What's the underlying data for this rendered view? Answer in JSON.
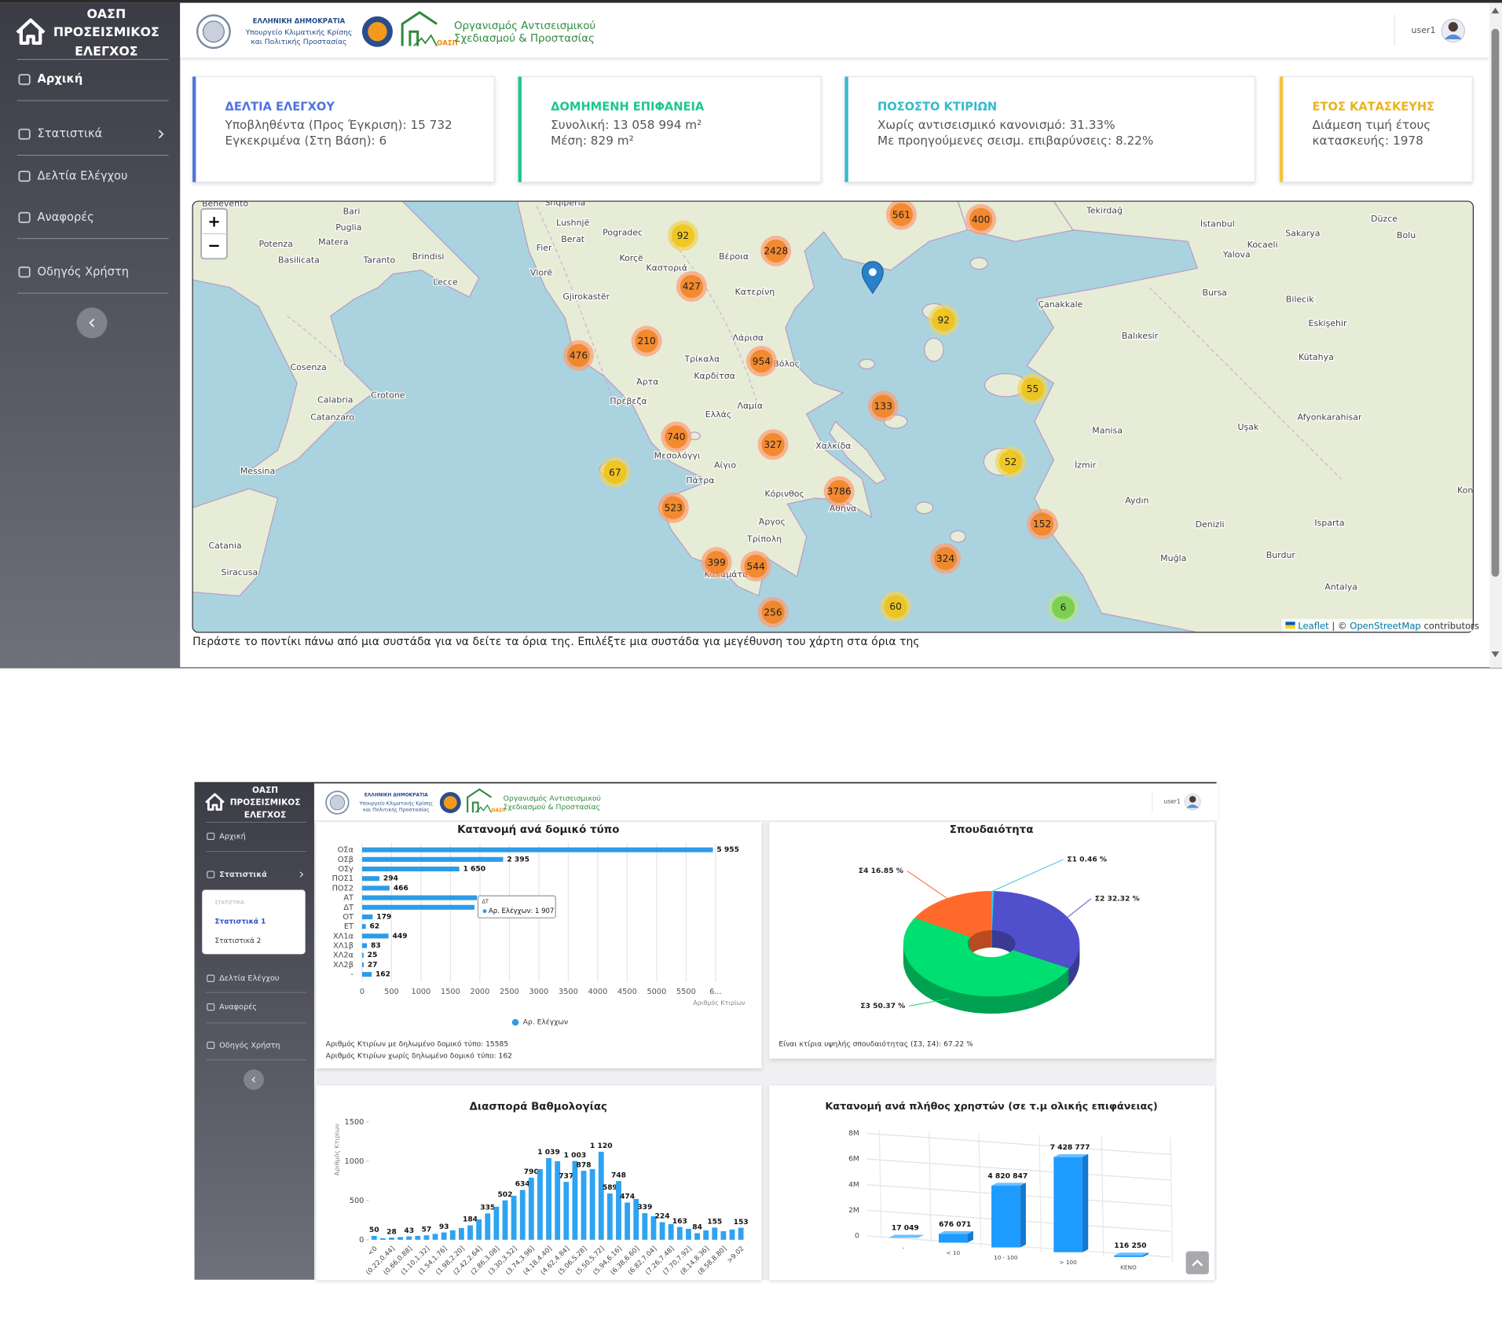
{
  "top": {
    "sidebar": {
      "title": [
        "ΟΑΣΠ",
        "ΠΡΟΣΕΙΣΜΙΚΟΣ",
        "ΕΛΕΓΧΟΣ"
      ],
      "menu": [
        "Αρχική",
        "Στατιστικά",
        "Δελτία Ελέγχου",
        "Αναφορές",
        "Οδηγός Χρήστη"
      ]
    },
    "header": {
      "ministry": [
        "ΕΛΛΗΝΙΚΗ ΔΗΜΟΚΡΑΤΙΑ",
        "Υπουργείο Κλιματικής Κρίσης",
        "και Πολιτικής Προστασίας"
      ],
      "badge": "ΟΑΣΠ",
      "org": [
        "Οργανισμός Αντισεισμικού",
        "Σχεδιασμού & Προστασίας"
      ],
      "user": "user1"
    },
    "cards": [
      {
        "title": "ΔΕΛΤΙΑ ΕΛΕΓΧΟΥ",
        "lines": [
          "Υποβληθέντα (Προς Έγκριση): 15 732",
          "Εγκεκριμένα (Στη Βάση): 6"
        ]
      },
      {
        "title": "ΔΟΜΗΜΕΝΗ ΕΠΙΦΑΝΕΙΑ",
        "lines": [
          "Συνολική: 13 058 994 m²",
          "Μέση: 829 m²"
        ]
      },
      {
        "title": "ΠΟΣΟΣΤΟ ΚΤΙΡΙΩΝ",
        "lines": [
          "Χωρίς αντισεισμικό κανονισμό: 31.33%",
          "Με προηγούμενες σεισμ. επιβαρύνσεις: 8.22%"
        ]
      },
      {
        "title": "ΕΤΟΣ ΚΑΤΑΣΚΕΥΗΣ",
        "lines": [
          "Διάμεση τιμή έτους",
          "κατασκευής: 1978"
        ]
      }
    ],
    "map": {
      "zoom_in": "+",
      "zoom_out": "−",
      "clusters": [
        561,
        400,
        92,
        2428,
        427,
        92,
        210,
        476,
        954,
        55,
        133,
        740,
        327,
        52,
        67,
        3786,
        523,
        152,
        399,
        544,
        324,
        256,
        60,
        6
      ],
      "places": [
        "Benevento",
        "Bari",
        "Puglia",
        "Matera",
        "Potenza",
        "Basilicata",
        "Taranto",
        "Brindisi",
        "Lecce",
        "Cosenza",
        "Crotone",
        "Calabria",
        "Catanzaro",
        "Messina",
        "Catania",
        "Siracusa",
        "Shqipëria",
        "Lushnjë",
        "Pogradec",
        "Berat",
        "Fier",
        "Korçë",
        "Vlorë",
        "Gjirokastër",
        "Βέροια",
        "Καστοριά",
        "Κατερίνη",
        "Λάρισα",
        "Τρίκαλα",
        "Βόλος",
        "Καρδίτσα",
        "Άρτα",
        "Πρέβεζα",
        "Λαμία",
        "Ελλάς",
        "Χαλκίδα",
        "Μεσολόγγι",
        "Αίγιο",
        "Πάτρα",
        "Κόρινθος",
        "Αθήνα",
        "Άργος",
        "Τρίπολη",
        "Καλαμάτα",
        "Tekirdağ",
        "İstanbul",
        "Düzce",
        "Sakarya",
        "Bolu",
        "Kocaeli",
        "Yalova",
        "Bursa",
        "Bilecik",
        "Çanakkale",
        "Eskişehir",
        "Balıkesir",
        "Kütahya",
        "Afyonkarahisar",
        "Uşak",
        "Manisa",
        "İzmir",
        "Aydın",
        "Isparta",
        "Denizli",
        "Burdur",
        "Muğla",
        "Antalya",
        "Konya"
      ],
      "attribution": [
        "Leaflet",
        " | © ",
        "OpenStreetMap",
        " contributors"
      ]
    },
    "caption": "Περάστε το ποντίκι πάνω από μια συστάδα για να δείτε τα όρια της. Επιλέξτε μια συστάδα για μεγέθυνση του χάρτη στα όρια της"
  },
  "bottom": {
    "sidebar": {
      "title": [
        "ΟΑΣΠ",
        "ΠΡΟΣΕΙΣΜΙΚΟΣ",
        "ΕΛΕΓΧΟΣ"
      ],
      "menu": [
        "Αρχική",
        "Στατιστικά",
        "Δελτία Ελέγχου",
        "Αναφορές",
        "Οδηγός Χρήστη"
      ],
      "submenu_header": "ΣΤΑΤΙΣΤΙΚΑ:",
      "submenu": [
        "Στατιστικά 1",
        "Στατιστικά 2"
      ]
    },
    "header": {
      "ministry": [
        "ΕΛΛΗΝΙΚΗ ΔΗΜΟΚΡΑΤΙΑ",
        "Υπουργείο Κλιματικής Κρίσης",
        "και Πολιτικής Προστασίας"
      ],
      "badge": "ΟΑΣΠ",
      "org": [
        "Οργανισμός Αντισεισμικού",
        "Σχεδιασμού & Προστασίας"
      ],
      "user": "user1"
    }
  },
  "chart_data": [
    {
      "type": "bar",
      "orientation": "horizontal",
      "title": "Κατανομή ανά δομικό τύπο",
      "categories": [
        "ΟΣα",
        "ΟΣβ",
        "ΟΣγ",
        "ΠΟΣ1",
        "ΠΟΣ2",
        "ΑΤ",
        "ΔΤ",
        "ΟΤ",
        "ΕΤ",
        "ΧΛ1α",
        "ΧΛ1β",
        "ΧΛ2α",
        "ΧΛ2β",
        "-"
      ],
      "series": [
        {
          "name": "Αρ. Ελέγχων",
          "color": "#2c9be8",
          "values": [
            5955,
            2395,
            1650,
            294,
            466,
            1950,
            1907,
            179,
            62,
            449,
            83,
            25,
            27,
            162
          ],
          "value_labels": [
            "5 955",
            "2 395",
            "1 650",
            "294",
            "466",
            null,
            null,
            "179",
            "62",
            "449",
            "83",
            "25",
            "27",
            "162"
          ]
        }
      ],
      "xlim": [
        0,
        6000
      ],
      "xticks": [
        0,
        500,
        1000,
        1500,
        2000,
        2500,
        3000,
        3500,
        4000,
        4500,
        5000,
        5500,
        {
          "value": 6000,
          "label": "6..."
        }
      ],
      "xlabel": "Αριθμός Κτιρίων",
      "grid": true,
      "legend": "bottom",
      "tooltip": {
        "title": "ΔΤ",
        "label": "Αρ. Ελέγχων: 1 907"
      },
      "notes": [
        "Αριθμός Κτιρίων με δηλωμένο δομικό τύπο: 15585",
        "Αριθμός Κτιρίων χωρίς δηλωμένο δομικό τύπο: 162"
      ]
    },
    {
      "type": "pie",
      "donut": true,
      "three_d": true,
      "title": "Σπουδαιότητα",
      "values": [
        0.46,
        32.32,
        50.37,
        16.85
      ],
      "value_labels": [
        "Σ1 0.46 %",
        "Σ2 32.32 %",
        "Σ3 50.37 %",
        "Σ4 16.85 %"
      ],
      "colors": [
        "#3fc1e6",
        "#5050cc",
        "#00e070",
        "#ff6a2c"
      ],
      "notes": [
        "Είναι κτίρια υψηλής σπουδαιότητας (Σ3, Σ4): 67.22 %"
      ]
    },
    {
      "type": "bar",
      "orientation": "vertical",
      "title": "Διασπορά Βαθμολογίας",
      "categories": [
        "<0",
        null,
        "(0.22,0.44]",
        null,
        "(0.66,0.88]",
        null,
        "(1.10,1.32]",
        null,
        "(1.54,1.76]",
        null,
        "(1.98,2.20]",
        null,
        "(2.42,2.64]",
        null,
        "(2.86,3.08]",
        null,
        "(3.30,3.52]",
        null,
        "(3.74,3.96]",
        null,
        "(4.18,4.40]",
        null,
        "(4.62,4.84]",
        null,
        "(5.06,5.28]",
        null,
        "(5.50,5.72]",
        null,
        "(5.94,6.16]",
        null,
        "(6.38,6.60]",
        null,
        "(6.82,7.04]",
        null,
        "(7.26,7.48]",
        null,
        "(7.70,7.92]",
        null,
        "(8.14,8.36]",
        null,
        "(8.58,8.80]",
        null,
        ">9.02"
      ],
      "series": [
        {
          "name": "Αριθμός Κτιρίων",
          "color": "#2ea3f2",
          "values": [
            50,
            20,
            28,
            35,
            43,
            50,
            57,
            75,
            93,
            120,
            150,
            184,
            260,
            335,
            420,
            502,
            560,
            634,
            790,
            900,
            1039,
            1000,
            737,
            1003,
            878,
            900,
            1120,
            589,
            748,
            474,
            520,
            339,
            300,
            224,
            200,
            163,
            140,
            84,
            120,
            155,
            110,
            130,
            153
          ],
          "value_labels": [
            "50",
            null,
            "28",
            null,
            "43",
            null,
            "57",
            null,
            "93",
            null,
            null,
            "184",
            null,
            "335",
            null,
            "502",
            null,
            "634",
            "790",
            null,
            "1 039",
            null,
            "737",
            "1 003",
            "878",
            null,
            "1 120",
            "589",
            "748",
            "474",
            null,
            "339",
            null,
            "224",
            null,
            "163",
            null,
            "84",
            null,
            "155",
            null,
            null,
            "153"
          ]
        }
      ],
      "ylim": [
        0,
        1500
      ],
      "yticks": [
        0,
        500,
        1000,
        1500
      ],
      "ylabel": "Αριθμός Κτιρίων"
    },
    {
      "type": "bar",
      "orientation": "vertical",
      "three_d": true,
      "title": "Κατανομή ανά πλήθος χρηστών (σε τ.μ ολικής επιφάνειας)",
      "categories": [
        "-",
        "< 10",
        "10 - 100",
        "> 100",
        "ΚΕΝΟ"
      ],
      "series": [
        {
          "name": "Επιφάνεια",
          "color": "#1e9bff",
          "values": [
            17049,
            676071,
            4820847,
            7428777,
            116250
          ],
          "value_labels": [
            "17 049",
            "676 071",
            "4 820 847",
            "7 428 777",
            "116 250"
          ]
        }
      ],
      "ylim": [
        0,
        8000000
      ],
      "yticks": [
        0,
        {
          "value": 2000000,
          "label": "2M"
        },
        {
          "value": 4000000,
          "label": "4M"
        },
        {
          "value": 6000000,
          "label": "6M"
        },
        {
          "value": 8000000,
          "label": "8M"
        }
      ],
      "grid": true
    }
  ]
}
